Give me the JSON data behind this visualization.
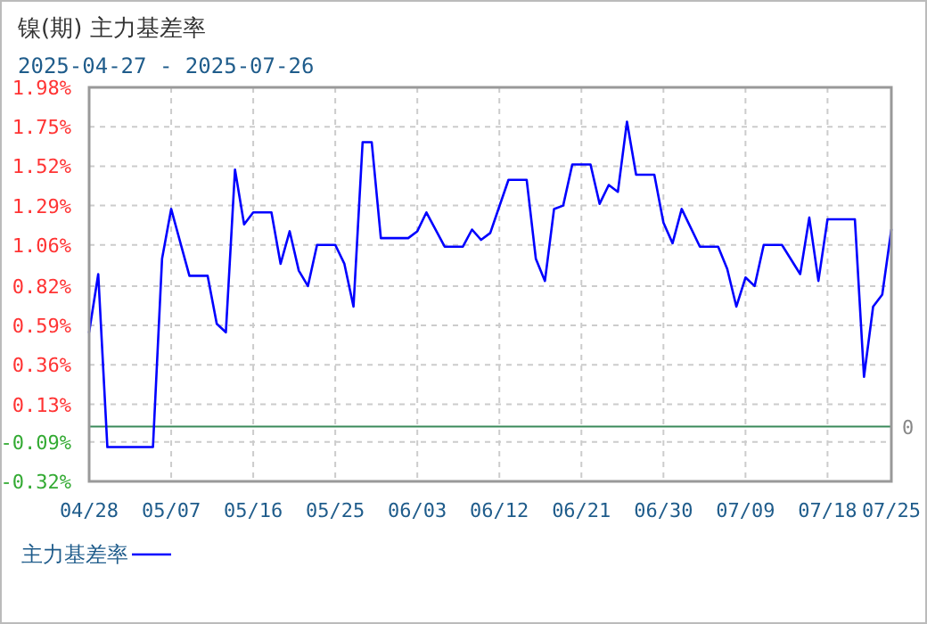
{
  "chart_data": {
    "type": "line",
    "title": "镍(期) 主力基差率",
    "subtitle": "2025-04-27 - 2025-07-26",
    "x": [
      "2025-04-28",
      "2025-04-29",
      "2025-04-30",
      "2025-05-05",
      "2025-05-06",
      "2025-05-07",
      "2025-05-09",
      "2025-05-11",
      "2025-05-12",
      "2025-05-13",
      "2025-05-14",
      "2025-05-15",
      "2025-05-16",
      "2025-05-18",
      "2025-05-19",
      "2025-05-20",
      "2025-05-21",
      "2025-05-22",
      "2025-05-23",
      "2025-05-25",
      "2025-05-26",
      "2025-05-27",
      "2025-05-28",
      "2025-05-29",
      "2025-05-30",
      "2025-06-02",
      "2025-06-03",
      "2025-06-04",
      "2025-06-06",
      "2025-06-08",
      "2025-06-09",
      "2025-06-10",
      "2025-06-11",
      "2025-06-13",
      "2025-06-15",
      "2025-06-16",
      "2025-06-17",
      "2025-06-18",
      "2025-06-19",
      "2025-06-20",
      "2025-06-22",
      "2025-06-23",
      "2025-06-24",
      "2025-06-25",
      "2025-06-26",
      "2025-06-27",
      "2025-06-29",
      "2025-06-30",
      "2025-07-01",
      "2025-07-02",
      "2025-07-04",
      "2025-07-06",
      "2025-07-07",
      "2025-07-08",
      "2025-07-09",
      "2025-07-10",
      "2025-07-11",
      "2025-07-13",
      "2025-07-15",
      "2025-07-16",
      "2025-07-17",
      "2025-07-18",
      "2025-07-21",
      "2025-07-22",
      "2025-07-23",
      "2025-07-24",
      "2025-07-25"
    ],
    "series": [
      {
        "name": "主力基差率",
        "color": "#0000ff",
        "values": [
          0.55,
          0.89,
          -0.12,
          -0.12,
          0.98,
          1.27,
          0.88,
          0.88,
          0.6,
          0.55,
          1.5,
          1.18,
          1.25,
          1.25,
          0.95,
          1.14,
          0.91,
          0.82,
          1.06,
          1.06,
          0.95,
          0.7,
          1.66,
          1.66,
          1.1,
          1.1,
          1.14,
          1.25,
          1.05,
          1.05,
          1.15,
          1.09,
          1.13,
          1.44,
          1.44,
          0.98,
          0.85,
          1.27,
          1.29,
          1.53,
          1.53,
          1.3,
          1.41,
          1.37,
          1.78,
          1.47,
          1.47,
          1.19,
          1.07,
          1.27,
          1.05,
          1.05,
          0.92,
          0.7,
          0.87,
          0.82,
          1.06,
          1.06,
          0.89,
          1.22,
          0.85,
          1.21,
          1.21,
          0.29,
          0.7,
          0.77,
          1.15
        ]
      }
    ],
    "xlim": [
      "2025-04-28",
      "2025-07-25"
    ],
    "xticks": [
      {
        "value": "2025-04-28",
        "label": "04/28"
      },
      {
        "value": "2025-05-07",
        "label": "05/07"
      },
      {
        "value": "2025-05-16",
        "label": "05/16"
      },
      {
        "value": "2025-05-25",
        "label": "05/25"
      },
      {
        "value": "2025-06-03",
        "label": "06/03"
      },
      {
        "value": "2025-06-12",
        "label": "06/12"
      },
      {
        "value": "2025-06-21",
        "label": "06/21"
      },
      {
        "value": "2025-06-30",
        "label": "06/30"
      },
      {
        "value": "2025-07-09",
        "label": "07/09"
      },
      {
        "value": "2025-07-18",
        "label": "07/18"
      },
      {
        "value": "2025-07-25",
        "label": "07/25"
      }
    ],
    "ylim": [
      -0.32,
      1.98
    ],
    "yticks": [
      {
        "value": 1.98,
        "label": "1.98%"
      },
      {
        "value": 1.75,
        "label": "1.75%"
      },
      {
        "value": 1.52,
        "label": "1.52%"
      },
      {
        "value": 1.29,
        "label": "1.29%"
      },
      {
        "value": 1.06,
        "label": "1.06%"
      },
      {
        "value": 0.82,
        "label": "0.82%"
      },
      {
        "value": 0.59,
        "label": "0.59%"
      },
      {
        "value": 0.36,
        "label": "0.36%"
      },
      {
        "value": 0.13,
        "label": "0.13%"
      },
      {
        "value": -0.09,
        "label": "-0.09%"
      },
      {
        "value": -0.32,
        "label": "-0.32%"
      }
    ],
    "ref_lines": [
      {
        "axis": "y",
        "value": 0,
        "label": "0",
        "color": "#3a8a5a"
      }
    ],
    "grid": true,
    "legend": "bottom left"
  }
}
